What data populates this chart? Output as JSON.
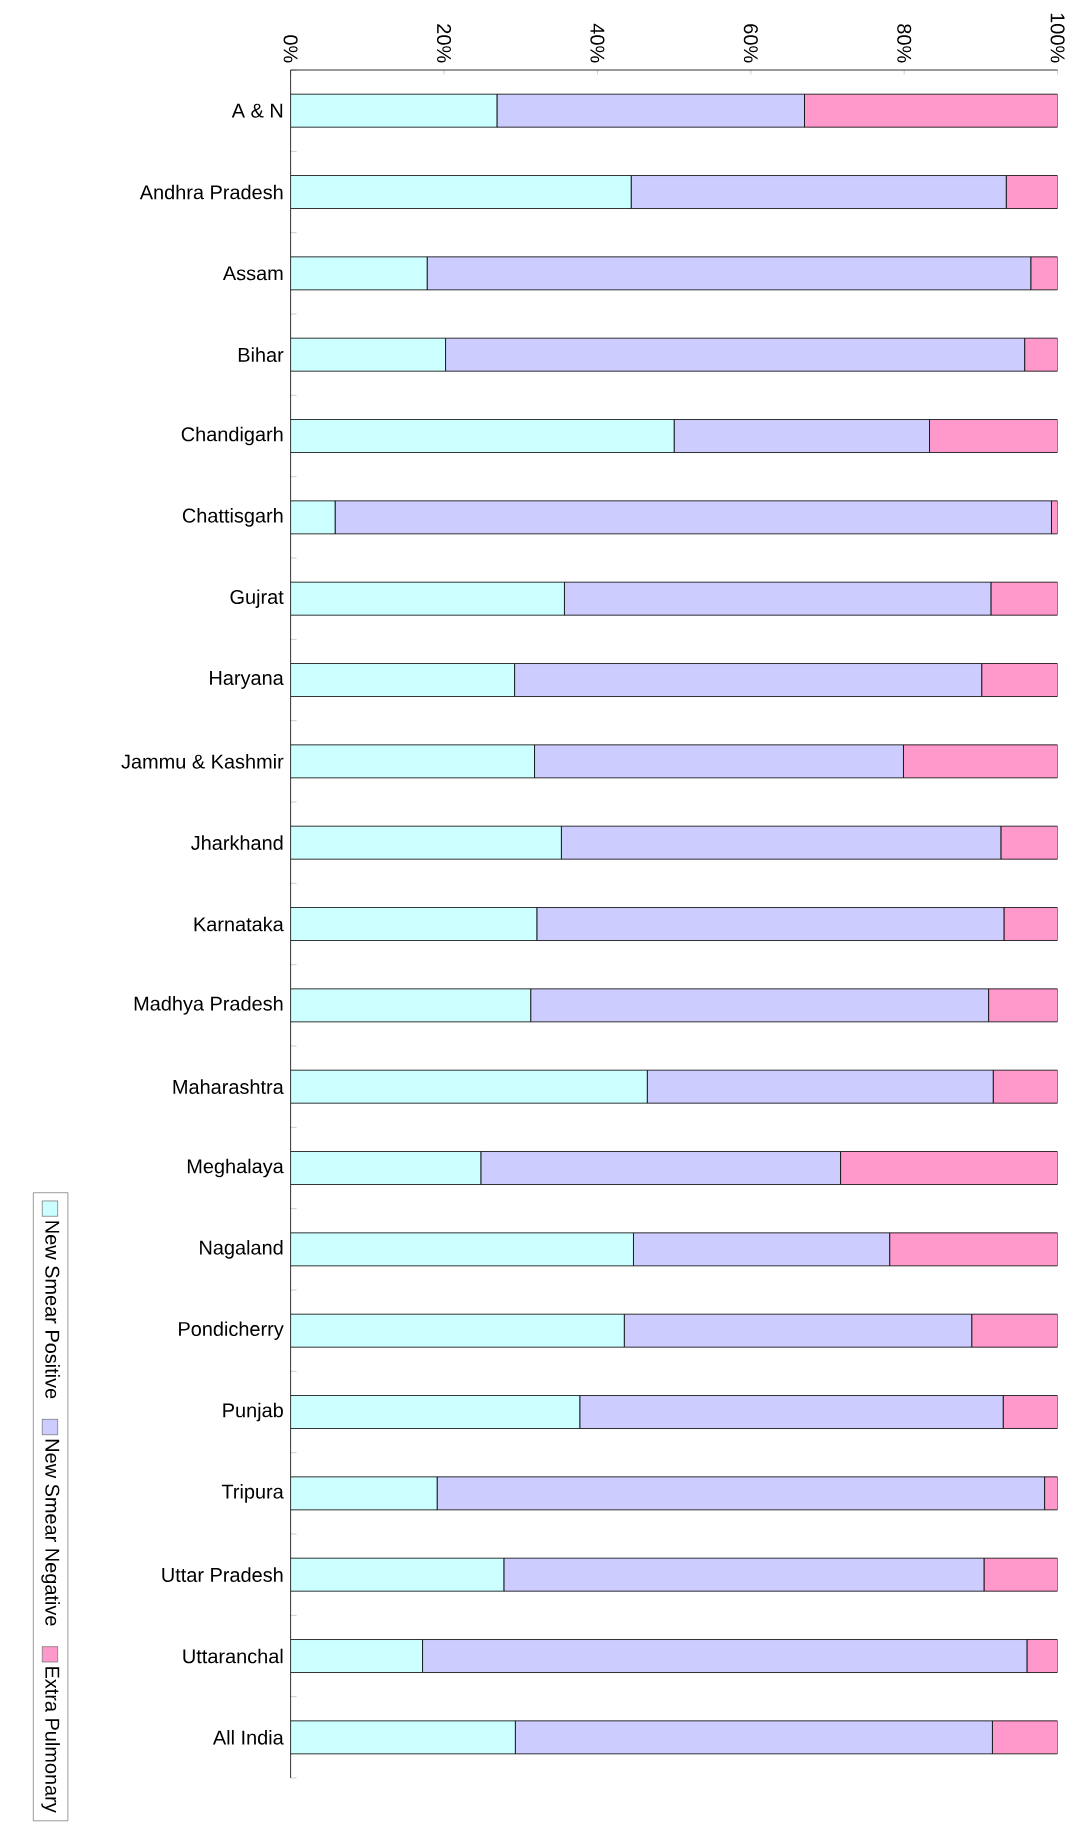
{
  "chart_data": {
    "type": "bar",
    "orientation": "horizontal",
    "stacked": true,
    "legend": "bottom left",
    "grid": false,
    "categories": [
      "A & N",
      "Andhra Pradesh",
      "Assam",
      "Bihar",
      "Chandigarh",
      "Chattisgarh",
      "Gujrat",
      "Haryana",
      "Jammu & Kashmir",
      "Jharkhand",
      "Karnataka",
      "Madhya Pradesh",
      "Maharashtra",
      "Meghalaya",
      "Nagaland",
      "Pondicherry",
      "Punjab",
      "Tripura",
      "Uttar Pradesh",
      "Uttaranchal",
      "All India"
    ],
    "xlim": [
      0,
      100
    ],
    "xticks": [
      {
        "value": 0,
        "label": "0%"
      },
      {
        "value": 20,
        "label": "20%"
      },
      {
        "value": 40,
        "label": "40%"
      },
      {
        "value": 60,
        "label": "60%"
      },
      {
        "value": 80,
        "label": "80%"
      },
      {
        "value": 100,
        "label": "100%"
      }
    ],
    "series": [
      {
        "name": "New Smear Positive",
        "color": "#ccffff",
        "values": [
          26.9,
          44.4,
          17.8,
          20.2,
          50.0,
          5.8,
          35.7,
          29.2,
          31.8,
          35.3,
          32.1,
          31.3,
          46.5,
          24.8,
          44.7,
          43.5,
          37.7,
          19.1,
          27.8,
          17.2,
          29.3
        ]
      },
      {
        "name": "New Smear Negative",
        "color": "#ccccff",
        "values": [
          40.1,
          48.9,
          78.7,
          75.5,
          33.3,
          93.4,
          55.6,
          60.9,
          48.1,
          57.3,
          60.9,
          59.7,
          45.1,
          46.9,
          33.4,
          45.3,
          55.2,
          79.2,
          62.6,
          78.8,
          62.2
        ]
      },
      {
        "name": "Extra Pulmonary",
        "color": "#ff99cc",
        "values": [
          33.0,
          6.7,
          3.5,
          4.3,
          16.7,
          0.8,
          8.7,
          9.9,
          20.1,
          7.4,
          7.0,
          9.0,
          8.4,
          28.3,
          21.9,
          11.2,
          7.1,
          1.7,
          9.6,
          4.0,
          8.5
        ]
      }
    ]
  }
}
